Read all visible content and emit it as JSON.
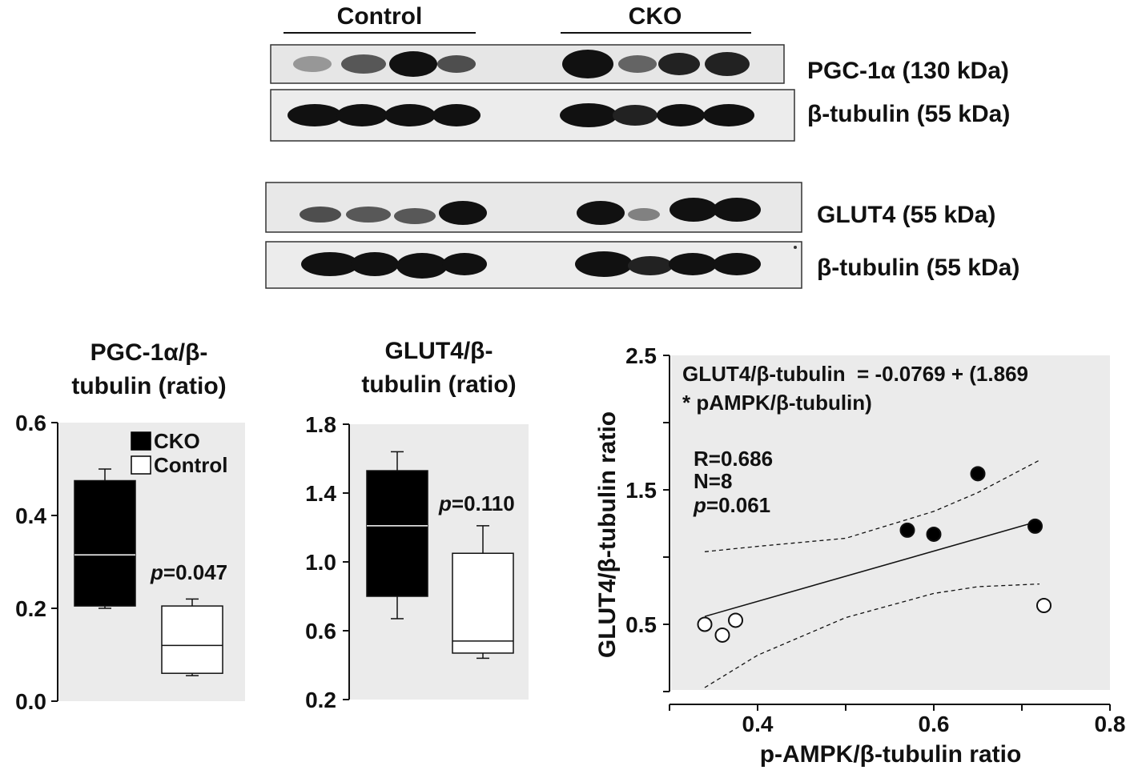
{
  "blot": {
    "groups": [
      {
        "label": "Control"
      },
      {
        "label": "CKO"
      }
    ],
    "rows": [
      {
        "label": "PGC-1α (130 kDa)"
      },
      {
        "label": "β-tubulin (55 kDa)"
      },
      {
        "label": "GLUT4 (55 kDa)"
      },
      {
        "label": "β-tubulin (55 kDa)"
      }
    ]
  },
  "chart_data": [
    {
      "type": "box",
      "title": "PGC-1α/β-tubulin (ratio)",
      "title_lines": [
        "PGC-1α/β-",
        "tubulin (ratio)"
      ],
      "ylim": [
        0.0,
        0.6
      ],
      "yticks": [
        "0.0",
        "0.2",
        "0.4",
        "0.6"
      ],
      "legend": [
        "CKO",
        "Control"
      ],
      "legend_position": "top-right",
      "annotation": {
        "p_label": "p",
        "text": "=0.047"
      },
      "series": [
        {
          "name": "CKO",
          "color": "#000000",
          "min": 0.2,
          "q1": 0.205,
          "median": 0.315,
          "q3": 0.475,
          "max": 0.5
        },
        {
          "name": "Control",
          "color": "#ffffff",
          "min": 0.055,
          "q1": 0.06,
          "median": 0.12,
          "q3": 0.205,
          "max": 0.22
        }
      ]
    },
    {
      "type": "box",
      "title": "GLUT4/β-tubulin (ratio)",
      "title_lines": [
        "GLUT4/β-",
        "tubulin (ratio)"
      ],
      "ylim": [
        0.2,
        1.8
      ],
      "yticks": [
        "0.2",
        "0.6",
        "1.0",
        "1.4",
        "1.8"
      ],
      "annotation": {
        "p_label": "p",
        "text": "=0.110"
      },
      "series": [
        {
          "name": "CKO",
          "color": "#000000",
          "min": 0.67,
          "q1": 0.8,
          "median": 1.21,
          "q3": 1.53,
          "max": 1.64
        },
        {
          "name": "Control",
          "color": "#ffffff",
          "min": 0.44,
          "q1": 0.47,
          "median": 0.54,
          "q3": 1.05,
          "max": 1.21
        }
      ]
    },
    {
      "type": "scatter",
      "xlabel": "p-AMPK/β-tubulin ratio",
      "ylabel": "GLUT4/β-tubulin ratio",
      "xlim": [
        0.3,
        0.8
      ],
      "ylim": [
        0.0,
        2.5
      ],
      "xticks": [
        "0.4",
        "0.6",
        "0.8"
      ],
      "yticks": [
        "0.5",
        "1.5",
        "2.5"
      ],
      "equation_lines": [
        "GLUT4/β-tubulin  = -0.0769 + (1.869",
        "* pAMPK/β-tubulin)"
      ],
      "stats": {
        "r": "R=0.686",
        "n": "N=8",
        "p_label": "p",
        "p_text": "=0.061"
      },
      "series": [
        {
          "name": "CKO",
          "fill": "#000000",
          "points": [
            [
              0.57,
              1.2
            ],
            [
              0.6,
              1.17
            ],
            [
              0.65,
              1.62
            ],
            [
              0.715,
              1.23
            ]
          ]
        },
        {
          "name": "Control",
          "fill": "#ffffff",
          "points": [
            [
              0.34,
              0.5
            ],
            [
              0.36,
              0.42
            ],
            [
              0.375,
              0.53
            ],
            [
              0.725,
              0.64
            ]
          ]
        }
      ],
      "fit": {
        "intercept": -0.0769,
        "slope": 1.869
      },
      "ci_upper": [
        [
          0.34,
          1.04
        ],
        [
          0.4,
          1.08
        ],
        [
          0.5,
          1.14
        ],
        [
          0.6,
          1.34
        ],
        [
          0.65,
          1.48
        ],
        [
          0.72,
          1.72
        ]
      ],
      "ci_lower": [
        [
          0.34,
          0.03
        ],
        [
          0.4,
          0.27
        ],
        [
          0.5,
          0.55
        ],
        [
          0.6,
          0.73
        ],
        [
          0.65,
          0.78
        ],
        [
          0.72,
          0.8
        ]
      ]
    }
  ]
}
